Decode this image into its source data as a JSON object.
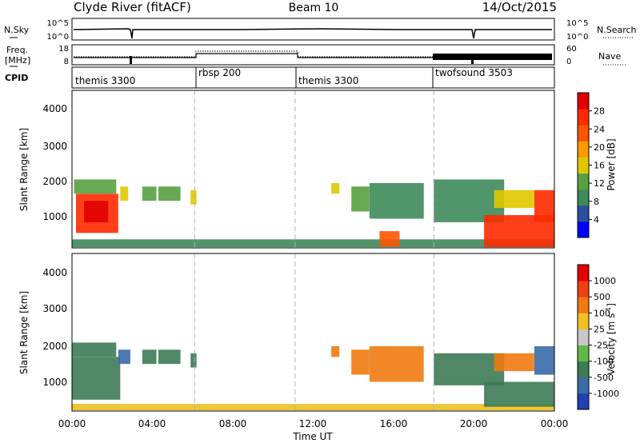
{
  "header": {
    "title": "Clyde River (fitACF)",
    "beam": "Beam 10",
    "date": "14/Oct/2015"
  },
  "panels": {
    "noise": {
      "left_label": "N.Sky",
      "left_ticks": [
        "10^5",
        "10^0"
      ],
      "right_label": "N.Search",
      "right_ticks": [
        "10^5",
        "10^0"
      ]
    },
    "freq": {
      "left_label_top": "Freq.",
      "left_label_bottom": "[MHz]",
      "left_ticks": [
        "18",
        "8"
      ],
      "right_label": "Nave",
      "right_ticks": [
        "60",
        "0"
      ]
    },
    "cpid": {
      "label": "CPID",
      "segments": [
        {
          "name": "themis 3300",
          "start_h": 0,
          "end_h": 6.1
        },
        {
          "name": "rbsp 200",
          "start_h": 6.1,
          "end_h": 11.1
        },
        {
          "name": "themis 3300",
          "start_h": 11.1,
          "end_h": 18.0
        },
        {
          "name": "twofsound 3503",
          "start_h": 18.0,
          "end_h": 24
        }
      ]
    }
  },
  "colorbars": {
    "power": {
      "label": "Power [dB]",
      "ticks": [
        "28",
        "24",
        "20",
        "16",
        "12",
        "8",
        "4"
      ],
      "colors": [
        "#0000ff",
        "#2a4fa0",
        "#3e8a5a",
        "#58a040",
        "#e0c800",
        "#ff9900",
        "#ff5500",
        "#ff2a00",
        "#e00000"
      ]
    },
    "velocity": {
      "label": "Velocity [m s",
      "label_sup": "-1",
      "label_end": "]",
      "ticks": [
        "1000",
        "500",
        "100",
        "25",
        "-25",
        "-100",
        "-500",
        "-1000"
      ],
      "colors": [
        "#2040b0",
        "#3a6aa8",
        "#3d7a55",
        "#62b845",
        "#c8c8c8",
        "#f0c020",
        "#f07a10",
        "#f04010",
        "#e00000"
      ]
    }
  },
  "chart_data": [
    {
      "type": "heatmap",
      "name": "Power",
      "ylabel": "Slant Range [km]",
      "yticks": [
        "1000",
        "2000",
        "3000",
        "4000"
      ],
      "ylim": [
        180,
        4600
      ],
      "xlim": [
        0,
        24
      ],
      "cells": [
        {
          "x": [
            0.2,
            2.3
          ],
          "y": [
            600,
            1700
          ],
          "level": 7
        },
        {
          "x": [
            0.6,
            1.8
          ],
          "y": [
            900,
            1500
          ],
          "level": 8
        },
        {
          "x": [
            0.1,
            2.2
          ],
          "y": [
            1700,
            2100
          ],
          "level": 3
        },
        {
          "x": [
            2.4,
            2.8
          ],
          "y": [
            1500,
            1900
          ],
          "level": 4
        },
        {
          "x": [
            3.5,
            4.2
          ],
          "y": [
            1500,
            1900
          ],
          "level": 3
        },
        {
          "x": [
            4.3,
            5.4
          ],
          "y": [
            1500,
            1900
          ],
          "level": 3
        },
        {
          "x": [
            5.9,
            6.2
          ],
          "y": [
            1400,
            1800
          ],
          "level": 4
        },
        {
          "x": [
            0.0,
            24.0
          ],
          "y": [
            200,
            420
          ],
          "level": 2
        },
        {
          "x": [
            12.9,
            13.3
          ],
          "y": [
            1700,
            2000
          ],
          "level": 4
        },
        {
          "x": [
            13.9,
            14.8
          ],
          "y": [
            1200,
            1900
          ],
          "level": 3
        },
        {
          "x": [
            14.8,
            17.5
          ],
          "y": [
            1000,
            2000
          ],
          "level": 2
        },
        {
          "x": [
            15.3,
            16.3
          ],
          "y": [
            220,
            650
          ],
          "level": 6
        },
        {
          "x": [
            18.0,
            21.5
          ],
          "y": [
            900,
            2100
          ],
          "level": 2
        },
        {
          "x": [
            21.0,
            23.0
          ],
          "y": [
            1300,
            1800
          ],
          "level": 4
        },
        {
          "x": [
            23.0,
            24.0
          ],
          "y": [
            900,
            1800
          ],
          "level": 7
        },
        {
          "x": [
            20.5,
            24.0
          ],
          "y": [
            200,
            1100
          ],
          "level": 7
        }
      ]
    },
    {
      "type": "heatmap",
      "name": "Velocity",
      "ylabel": "Slant Range [km]",
      "yticks": [
        "1000",
        "2000",
        "3000",
        "4000"
      ],
      "ylim": [
        180,
        4600
      ],
      "xlim": [
        0,
        24
      ],
      "xlabel": "Time UT",
      "xticks": [
        "00:00",
        "04:00",
        "08:00",
        "12:00",
        "16:00",
        "20:00",
        "00:00"
      ],
      "cells": [
        {
          "x": [
            0.0,
            2.4
          ],
          "y": [
            500,
            1700
          ],
          "level": 2
        },
        {
          "x": [
            0.0,
            2.2
          ],
          "y": [
            1700,
            2100
          ],
          "level": 2
        },
        {
          "x": [
            2.3,
            2.9
          ],
          "y": [
            1500,
            1900
          ],
          "level": 1
        },
        {
          "x": [
            3.5,
            4.2
          ],
          "y": [
            1500,
            1900
          ],
          "level": 2
        },
        {
          "x": [
            4.3,
            5.4
          ],
          "y": [
            1500,
            1900
          ],
          "level": 2
        },
        {
          "x": [
            5.9,
            6.2
          ],
          "y": [
            1400,
            1800
          ],
          "level": 2
        },
        {
          "x": [
            0.0,
            24.0
          ],
          "y": [
            200,
            380
          ],
          "level": 5
        },
        {
          "x": [
            12.9,
            13.3
          ],
          "y": [
            1700,
            2000
          ],
          "level": 6
        },
        {
          "x": [
            13.9,
            14.8
          ],
          "y": [
            1200,
            1900
          ],
          "level": 6
        },
        {
          "x": [
            14.8,
            17.5
          ],
          "y": [
            1000,
            2000
          ],
          "level": 6
        },
        {
          "x": [
            18.0,
            21.5
          ],
          "y": [
            900,
            1800
          ],
          "level": 2
        },
        {
          "x": [
            21.0,
            23.0
          ],
          "y": [
            1300,
            1800
          ],
          "level": 6
        },
        {
          "x": [
            23.0,
            24.0
          ],
          "y": [
            1200,
            2000
          ],
          "level": 1
        },
        {
          "x": [
            20.5,
            24.0
          ],
          "y": [
            300,
            1000
          ],
          "level": 2
        }
      ]
    }
  ]
}
